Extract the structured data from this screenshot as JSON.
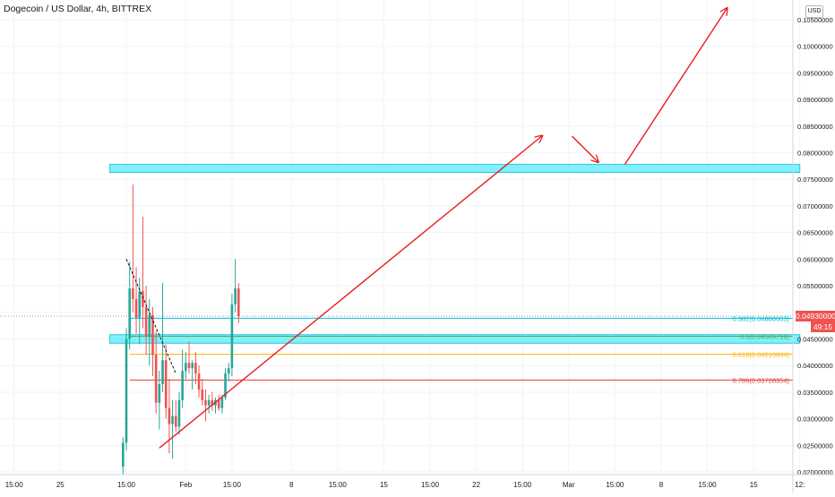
{
  "title": "Dogecoin / US Dollar, 4h, BITTREX",
  "currency_button": "USD",
  "current_price": "0.04930000",
  "countdown": "49:15",
  "colors": {
    "up": "#26a69a",
    "down": "#ef5350",
    "zone": "#80f0ff",
    "zone_border": "#26c6da",
    "arrow": "#e81c1c",
    "fib_0382": "#00bcd4",
    "fib_05": "#4caf50",
    "fib_0618": "#ffb300",
    "fib_0786": "#e53935",
    "grid": "#f0f3fa"
  },
  "chart_data": {
    "type": "candlestick",
    "ylim": [
      0.0195,
      0.1087
    ],
    "y_ticks": [
      {
        "value": 0.02,
        "label": "0.02000000"
      },
      {
        "value": 0.025,
        "label": "0.02500000"
      },
      {
        "value": 0.03,
        "label": "0.03000000"
      },
      {
        "value": 0.035,
        "label": "0.03500000"
      },
      {
        "value": 0.04,
        "label": "0.04000000"
      },
      {
        "value": 0.045,
        "label": "0.04500000"
      },
      {
        "value": 0.05,
        "label": "0.05000000"
      },
      {
        "value": 0.055,
        "label": "0.05500000"
      },
      {
        "value": 0.06,
        "label": "0.06000000"
      },
      {
        "value": 0.065,
        "label": "0.06500000"
      },
      {
        "value": 0.07,
        "label": "0.07000000"
      },
      {
        "value": 0.075,
        "label": "0.07500000"
      },
      {
        "value": 0.08,
        "label": "0.08000000"
      },
      {
        "value": 0.085,
        "label": "0.08500000"
      },
      {
        "value": 0.09,
        "label": "0.09000000"
      },
      {
        "value": 0.095,
        "label": "0.09500000"
      },
      {
        "value": 0.1,
        "label": "0.10000000"
      },
      {
        "value": 0.105,
        "label": "0.10500000"
      }
    ],
    "x_ticks": [
      {
        "t": -17,
        "label": "15:00"
      },
      {
        "t": -10,
        "label": "25"
      },
      {
        "t": 0,
        "label": "15:00"
      },
      {
        "t": 9,
        "label": "Feb"
      },
      {
        "t": 16,
        "label": "15:00"
      },
      {
        "t": 25,
        "label": "8"
      },
      {
        "t": 32,
        "label": "15:00"
      },
      {
        "t": 39,
        "label": "15"
      },
      {
        "t": 46,
        "label": "15:00"
      },
      {
        "t": 53,
        "label": "22"
      },
      {
        "t": 60,
        "label": "15:00"
      },
      {
        "t": 67,
        "label": "Mar"
      },
      {
        "t": 74,
        "label": "15:00"
      },
      {
        "t": 81,
        "label": "8"
      },
      {
        "t": 88,
        "label": "15:00"
      },
      {
        "t": 95,
        "label": "15"
      },
      {
        "t": 102,
        "label": "12:"
      }
    ],
    "candles": [
      {
        "t": -0.5,
        "o": 0.021,
        "h": 0.0265,
        "l": 0.0195,
        "c": 0.0255
      },
      {
        "t": 0,
        "o": 0.0255,
        "h": 0.047,
        "l": 0.024,
        "c": 0.045
      },
      {
        "t": 0.5,
        "o": 0.045,
        "h": 0.0595,
        "l": 0.043,
        "c": 0.0545
      },
      {
        "t": 1,
        "o": 0.0545,
        "h": 0.074,
        "l": 0.05,
        "c": 0.0525
      },
      {
        "t": 1.5,
        "o": 0.0525,
        "h": 0.0585,
        "l": 0.046,
        "c": 0.049
      },
      {
        "t": 2,
        "o": 0.049,
        "h": 0.0565,
        "l": 0.044,
        "c": 0.054
      },
      {
        "t": 2.5,
        "o": 0.054,
        "h": 0.068,
        "l": 0.047,
        "c": 0.051
      },
      {
        "t": 3,
        "o": 0.051,
        "h": 0.055,
        "l": 0.042,
        "c": 0.0455
      },
      {
        "t": 3.5,
        "o": 0.0455,
        "h": 0.0525,
        "l": 0.04,
        "c": 0.0495
      },
      {
        "t": 4,
        "o": 0.0495,
        "h": 0.051,
        "l": 0.038,
        "c": 0.042
      },
      {
        "t": 4.5,
        "o": 0.042,
        "h": 0.0465,
        "l": 0.031,
        "c": 0.033
      },
      {
        "t": 5,
        "o": 0.033,
        "h": 0.039,
        "l": 0.028,
        "c": 0.0365
      },
      {
        "t": 5.5,
        "o": 0.0365,
        "h": 0.0555,
        "l": 0.035,
        "c": 0.041
      },
      {
        "t": 6,
        "o": 0.041,
        "h": 0.044,
        "l": 0.03,
        "c": 0.032
      },
      {
        "t": 6.5,
        "o": 0.032,
        "h": 0.0375,
        "l": 0.0235,
        "c": 0.029
      },
      {
        "t": 7,
        "o": 0.029,
        "h": 0.0335,
        "l": 0.0225,
        "c": 0.0305
      },
      {
        "t": 7.5,
        "o": 0.0305,
        "h": 0.0335,
        "l": 0.0275,
        "c": 0.0285
      },
      {
        "t": 8,
        "o": 0.0285,
        "h": 0.035,
        "l": 0.027,
        "c": 0.0335
      },
      {
        "t": 8.5,
        "o": 0.0335,
        "h": 0.043,
        "l": 0.032,
        "c": 0.039
      },
      {
        "t": 9,
        "o": 0.039,
        "h": 0.0425,
        "l": 0.0375,
        "c": 0.0405
      },
      {
        "t": 9.5,
        "o": 0.0405,
        "h": 0.0445,
        "l": 0.0385,
        "c": 0.0395
      },
      {
        "t": 10,
        "o": 0.0395,
        "h": 0.041,
        "l": 0.0355,
        "c": 0.0405
      },
      {
        "t": 10.5,
        "o": 0.0405,
        "h": 0.0425,
        "l": 0.0365,
        "c": 0.0385
      },
      {
        "t": 11,
        "o": 0.0385,
        "h": 0.04,
        "l": 0.034,
        "c": 0.0355
      },
      {
        "t": 11.5,
        "o": 0.0355,
        "h": 0.0375,
        "l": 0.0325,
        "c": 0.0335
      },
      {
        "t": 12,
        "o": 0.0335,
        "h": 0.0355,
        "l": 0.0295,
        "c": 0.0325
      },
      {
        "t": 12.5,
        "o": 0.0325,
        "h": 0.0345,
        "l": 0.031,
        "c": 0.0335
      },
      {
        "t": 13,
        "o": 0.0335,
        "h": 0.035,
        "l": 0.0315,
        "c": 0.0325
      },
      {
        "t": 13.5,
        "o": 0.0325,
        "h": 0.034,
        "l": 0.031,
        "c": 0.0335
      },
      {
        "t": 14,
        "o": 0.0335,
        "h": 0.0345,
        "l": 0.0315,
        "c": 0.032
      },
      {
        "t": 14.5,
        "o": 0.032,
        "h": 0.0345,
        "l": 0.031,
        "c": 0.034
      },
      {
        "t": 15,
        "o": 0.034,
        "h": 0.0395,
        "l": 0.0335,
        "c": 0.0385
      },
      {
        "t": 15.5,
        "o": 0.0385,
        "h": 0.0405,
        "l": 0.037,
        "c": 0.0395
      },
      {
        "t": 16,
        "o": 0.0395,
        "h": 0.0535,
        "l": 0.038,
        "c": 0.0515
      },
      {
        "t": 16.5,
        "o": 0.0515,
        "h": 0.06,
        "l": 0.05,
        "c": 0.0545
      },
      {
        "t": 17,
        "o": 0.0545,
        "h": 0.0555,
        "l": 0.048,
        "c": 0.0493
      }
    ],
    "horizontal_zones": [
      {
        "from_t": -2.5,
        "to_t": 102,
        "low": 0.0763,
        "high": 0.0778
      },
      {
        "from_t": -2.5,
        "to_t": 102,
        "low": 0.0442,
        "high": 0.0458
      }
    ],
    "fib_levels": [
      {
        "ratio": "0.382",
        "value": 0.04888603,
        "label": "0.382(0.04888603)",
        "color_key": "fib_0382"
      },
      {
        "ratio": "0.5",
        "value": 0.04549718,
        "label": "0.5(0.04549718)",
        "color_key": "fib_05"
      },
      {
        "ratio": "0.618",
        "value": 0.04210834,
        "label": "0.618(0.04210834)",
        "color_key": "fib_0618"
      },
      {
        "ratio": "0.786",
        "value": 0.03728354,
        "label": "0.786(0.03728354)",
        "color_key": "fib_0786"
      }
    ],
    "fib_from_t": 0.5,
    "current_price_value": 0.0493,
    "countdown_value": 0.0473,
    "trend_lines": [
      {
        "t1": 0,
        "v1": 0.06,
        "t2": 7.5,
        "v2": 0.0385,
        "dashed": true,
        "color": "#131722"
      }
    ],
    "arrows": [
      {
        "t1": 5,
        "v1": 0.0245,
        "t2": 63,
        "v2": 0.0832
      },
      {
        "t1": 67.5,
        "v1": 0.0831,
        "t2": 71.5,
        "v2": 0.0782
      },
      {
        "t1": 75.5,
        "v1": 0.0778,
        "t2": 91,
        "v2": 0.1072
      }
    ]
  }
}
